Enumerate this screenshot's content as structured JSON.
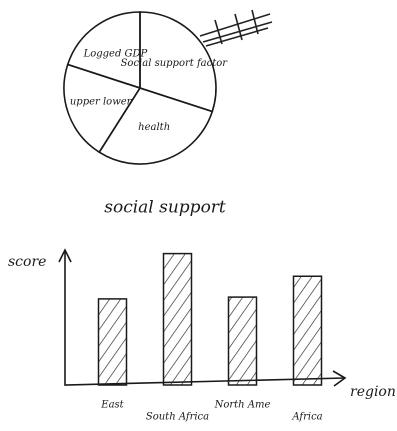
{
  "chart_data": [
    {
      "type": "pie",
      "title": "social support",
      "categories": [
        "Social support factor",
        "health",
        "upper lower",
        "Logged GDP"
      ],
      "values": [
        30,
        29,
        21,
        20
      ]
    },
    {
      "type": "bar",
      "ylabel": "score",
      "xlabel": "region",
      "categories": [
        "East",
        "South Africa",
        "North Ame",
        "Africa"
      ],
      "values": [
        95,
        145,
        97,
        120
      ],
      "ylim": [
        0,
        160
      ]
    }
  ]
}
